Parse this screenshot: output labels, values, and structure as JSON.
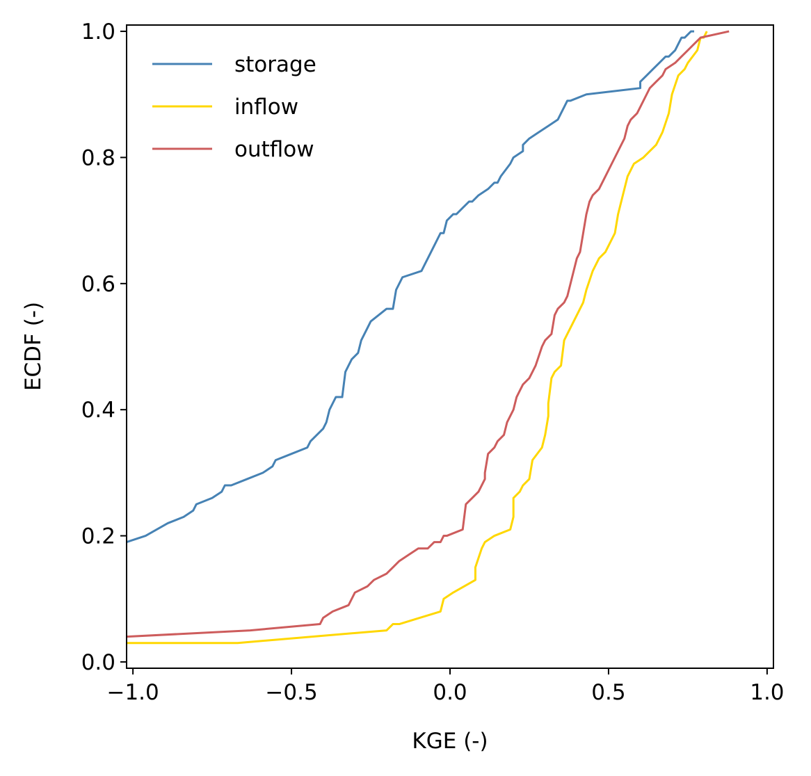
{
  "chart_data": {
    "type": "line",
    "title": "",
    "xlabel": "KGE (-)",
    "ylabel": "ECDF (-)",
    "xlim": [
      -1.02,
      1.02
    ],
    "ylim": [
      -0.01,
      1.01
    ],
    "grid": false,
    "legend_position": "top-left",
    "x_ticks": [
      -1.0,
      -0.5,
      0.0,
      0.5,
      1.0
    ],
    "x_tick_labels": [
      "−1.0",
      "−0.5",
      "0.0",
      "0.5",
      "1.0"
    ],
    "y_ticks": [
      0.0,
      0.2,
      0.4,
      0.6,
      0.8,
      1.0
    ],
    "y_tick_labels": [
      "0.0",
      "0.2",
      "0.4",
      "0.6",
      "0.8",
      "1.0"
    ],
    "series": [
      {
        "name": "storage",
        "color": "#4682b4",
        "x": [
          -1.02,
          -0.96,
          -0.89,
          -0.84,
          -0.81,
          -0.8,
          -0.75,
          -0.72,
          -0.71,
          -0.69,
          -0.64,
          -0.59,
          -0.56,
          -0.55,
          -0.5,
          -0.45,
          -0.44,
          -0.4,
          -0.39,
          -0.38,
          -0.37,
          -0.36,
          -0.34,
          -0.33,
          -0.32,
          -0.31,
          -0.29,
          -0.28,
          -0.26,
          -0.25,
          -0.2,
          -0.18,
          -0.17,
          -0.16,
          -0.15,
          -0.09,
          -0.08,
          -0.07,
          -0.05,
          -0.03,
          -0.02,
          -0.01,
          0.01,
          0.02,
          0.04,
          0.06,
          0.07,
          0.09,
          0.12,
          0.14,
          0.15,
          0.16,
          0.19,
          0.2,
          0.23,
          0.23,
          0.25,
          0.28,
          0.31,
          0.34,
          0.35,
          0.36,
          0.37,
          0.38,
          0.43,
          0.6,
          0.6,
          0.62,
          0.64,
          0.66,
          0.68,
          0.69,
          0.71,
          0.72,
          0.73,
          0.74,
          0.76,
          0.77
        ],
        "y": [
          0.19,
          0.2,
          0.22,
          0.23,
          0.24,
          0.25,
          0.26,
          0.27,
          0.28,
          0.28,
          0.29,
          0.3,
          0.31,
          0.32,
          0.33,
          0.34,
          0.35,
          0.37,
          0.38,
          0.4,
          0.41,
          0.42,
          0.42,
          0.46,
          0.47,
          0.48,
          0.49,
          0.51,
          0.53,
          0.54,
          0.56,
          0.56,
          0.59,
          0.6,
          0.61,
          0.62,
          0.63,
          0.64,
          0.66,
          0.68,
          0.68,
          0.7,
          0.71,
          0.71,
          0.72,
          0.73,
          0.73,
          0.74,
          0.75,
          0.76,
          0.76,
          0.77,
          0.79,
          0.8,
          0.81,
          0.82,
          0.83,
          0.84,
          0.85,
          0.86,
          0.87,
          0.88,
          0.89,
          0.89,
          0.9,
          0.91,
          0.92,
          0.93,
          0.94,
          0.95,
          0.96,
          0.96,
          0.97,
          0.98,
          0.99,
          0.99,
          1.0,
          1.0
        ]
      },
      {
        "name": "inflow",
        "color": "#ffd700",
        "x": [
          -1.02,
          -0.67,
          -0.2,
          -0.18,
          -0.16,
          -0.03,
          -0.02,
          0.01,
          0.08,
          0.08,
          0.1,
          0.11,
          0.14,
          0.19,
          0.2,
          0.2,
          0.22,
          0.23,
          0.25,
          0.26,
          0.29,
          0.3,
          0.31,
          0.31,
          0.32,
          0.33,
          0.35,
          0.36,
          0.37,
          0.38,
          0.4,
          0.42,
          0.43,
          0.45,
          0.47,
          0.49,
          0.52,
          0.53,
          0.55,
          0.56,
          0.58,
          0.61,
          0.63,
          0.65,
          0.67,
          0.69,
          0.7,
          0.72,
          0.74,
          0.75,
          0.78,
          0.79,
          0.8,
          0.81
        ],
        "y": [
          0.03,
          0.03,
          0.05,
          0.06,
          0.06,
          0.08,
          0.1,
          0.11,
          0.13,
          0.15,
          0.18,
          0.19,
          0.2,
          0.21,
          0.23,
          0.26,
          0.27,
          0.28,
          0.29,
          0.32,
          0.34,
          0.36,
          0.39,
          0.41,
          0.45,
          0.46,
          0.47,
          0.51,
          0.52,
          0.53,
          0.55,
          0.57,
          0.59,
          0.62,
          0.64,
          0.65,
          0.68,
          0.71,
          0.75,
          0.77,
          0.79,
          0.8,
          0.81,
          0.82,
          0.84,
          0.87,
          0.9,
          0.93,
          0.94,
          0.95,
          0.97,
          0.99,
          0.99,
          1.0
        ],
        "note": ""
      },
      {
        "name": "outflow",
        "color": "#cd5c5c",
        "x": [
          -1.02,
          -0.63,
          -0.41,
          -0.4,
          -0.37,
          -0.32,
          -0.31,
          -0.3,
          -0.26,
          -0.24,
          -0.2,
          -0.18,
          -0.16,
          -0.13,
          -0.1,
          -0.07,
          -0.05,
          -0.03,
          -0.02,
          -0.01,
          0.04,
          0.05,
          0.07,
          0.09,
          0.11,
          0.11,
          0.12,
          0.14,
          0.15,
          0.17,
          0.18,
          0.2,
          0.21,
          0.22,
          0.23,
          0.25,
          0.26,
          0.27,
          0.29,
          0.3,
          0.32,
          0.33,
          0.34,
          0.36,
          0.37,
          0.38,
          0.39,
          0.4,
          0.41,
          0.42,
          0.43,
          0.44,
          0.45,
          0.47,
          0.49,
          0.51,
          0.53,
          0.55,
          0.56,
          0.57,
          0.59,
          0.6,
          0.62,
          0.63,
          0.65,
          0.67,
          0.68,
          0.71,
          0.73,
          0.75,
          0.77,
          0.79,
          0.88
        ],
        "y": [
          0.04,
          0.05,
          0.06,
          0.07,
          0.08,
          0.09,
          0.1,
          0.11,
          0.12,
          0.13,
          0.14,
          0.15,
          0.16,
          0.17,
          0.18,
          0.18,
          0.19,
          0.19,
          0.2,
          0.2,
          0.21,
          0.25,
          0.26,
          0.27,
          0.29,
          0.3,
          0.33,
          0.34,
          0.35,
          0.36,
          0.38,
          0.4,
          0.42,
          0.43,
          0.44,
          0.45,
          0.46,
          0.47,
          0.5,
          0.51,
          0.52,
          0.55,
          0.56,
          0.57,
          0.58,
          0.6,
          0.62,
          0.64,
          0.65,
          0.68,
          0.71,
          0.73,
          0.74,
          0.75,
          0.77,
          0.79,
          0.81,
          0.83,
          0.85,
          0.86,
          0.87,
          0.88,
          0.9,
          0.91,
          0.92,
          0.93,
          0.94,
          0.95,
          0.96,
          0.97,
          0.98,
          0.99,
          1.0
        ]
      }
    ]
  }
}
